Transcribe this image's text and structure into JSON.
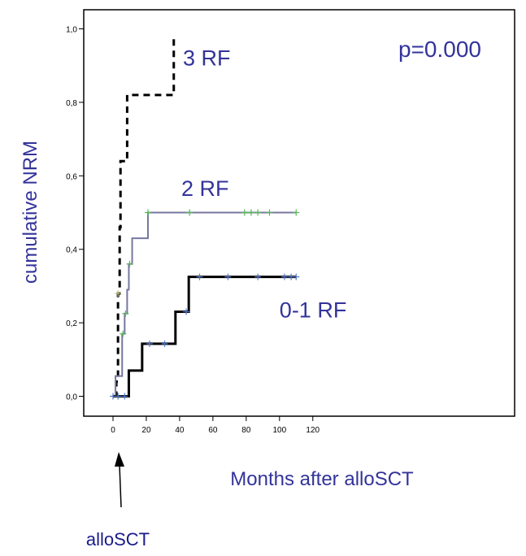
{
  "chart_data": {
    "type": "line",
    "subtype": "step",
    "xlabel": "Months after alloSCT",
    "ylabel": "cumulative NRM",
    "xlim": [
      -10,
      122
    ],
    "ylim": [
      -0.06,
      1.05
    ],
    "x_ticks": [
      0,
      20,
      40,
      60,
      80,
      100,
      120
    ],
    "y_ticks": [
      0.0,
      0.2,
      0.4,
      0.6,
      0.8,
      1.0
    ],
    "y_tick_labels": [
      "0,0",
      "0,2",
      "0,4",
      "0,6",
      "0,8",
      "1,0"
    ],
    "p_value": "p=0.000",
    "annotation": "alloSCT",
    "annotation_x": 2,
    "series": [
      {
        "name": "3 RF",
        "style": "dashed",
        "color": "#000000",
        "label_at": [
          42,
          0.9
        ],
        "steps": [
          [
            1,
            0.0
          ],
          [
            2,
            0.04
          ],
          [
            3,
            0.28
          ],
          [
            4,
            0.46
          ],
          [
            4.5,
            0.64
          ],
          [
            8,
            0.64
          ],
          [
            8.5,
            0.82
          ],
          [
            36,
            0.82
          ],
          [
            36.5,
            0.98
          ]
        ],
        "censored": [
          [
            3,
            0.28
          ]
        ]
      },
      {
        "name": "2 RF",
        "style": "solid",
        "color": "#7777a0",
        "label_at": [
          41,
          0.545
        ],
        "steps": [
          [
            1,
            0.0
          ],
          [
            1.5,
            0.055
          ],
          [
            5,
            0.055
          ],
          [
            5.5,
            0.17
          ],
          [
            6.5,
            0.17
          ],
          [
            7,
            0.225
          ],
          [
            8,
            0.225
          ],
          [
            8.5,
            0.29
          ],
          [
            9,
            0.29
          ],
          [
            9.5,
            0.36
          ],
          [
            11,
            0.36
          ],
          [
            11.5,
            0.43
          ],
          [
            20.5,
            0.43
          ],
          [
            21,
            0.5
          ],
          [
            110,
            0.5
          ]
        ],
        "censored": [
          [
            3,
            0.0
          ],
          [
            6,
            0.17
          ],
          [
            7.5,
            0.225
          ],
          [
            10,
            0.36
          ],
          [
            21,
            0.5
          ],
          [
            46,
            0.5
          ],
          [
            79,
            0.5
          ],
          [
            83,
            0.5
          ],
          [
            87,
            0.5
          ],
          [
            94,
            0.5
          ],
          [
            110,
            0.5
          ]
        ]
      },
      {
        "name": "0-1 RF",
        "style": "solid",
        "color": "#000000",
        "label_at": [
          100,
          0.215
        ],
        "steps": [
          [
            0,
            0.0
          ],
          [
            9,
            0.0
          ],
          [
            9.5,
            0.07
          ],
          [
            17,
            0.07
          ],
          [
            17.5,
            0.143
          ],
          [
            37,
            0.143
          ],
          [
            37.5,
            0.23
          ],
          [
            45,
            0.23
          ],
          [
            45.5,
            0.325
          ],
          [
            110,
            0.325
          ]
        ],
        "censored": [
          [
            0,
            0.0
          ],
          [
            3,
            0.0
          ],
          [
            7,
            0.0
          ],
          [
            22,
            0.143
          ],
          [
            31,
            0.143
          ],
          [
            44,
            0.23
          ],
          [
            52,
            0.325
          ],
          [
            69,
            0.325
          ],
          [
            87,
            0.325
          ],
          [
            103,
            0.325
          ],
          [
            107,
            0.325
          ],
          [
            110,
            0.325
          ]
        ]
      }
    ]
  }
}
